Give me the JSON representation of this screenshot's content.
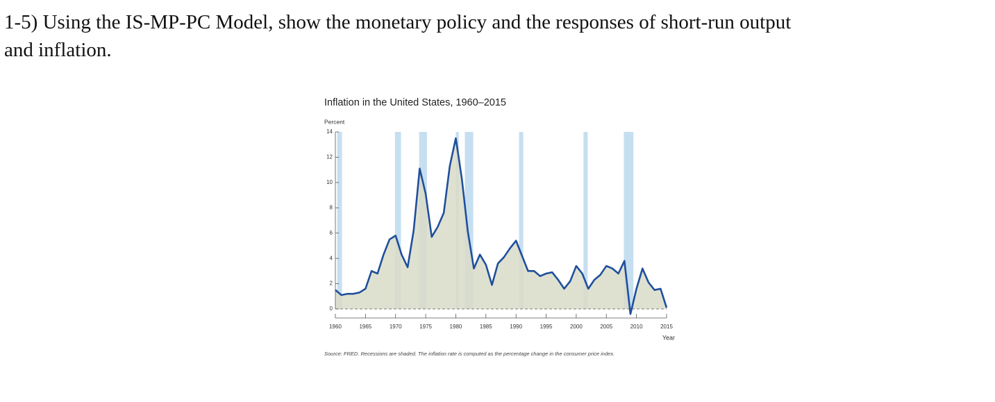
{
  "question": {
    "lines": [
      "1-5) Using the IS-MP-PC Model, show the monetary policy and the responses of short-run output",
      "and inflation."
    ]
  },
  "chart_data": {
    "type": "line",
    "title": "Inflation in the United States, 1960–2015",
    "y_label": "Percent",
    "x_label": "Year",
    "source": "Source: FRED. Recessions are shaded. The inflation rate is computed as the percentage change in the consumer price index.",
    "x": [
      1960,
      1961,
      1962,
      1963,
      1964,
      1965,
      1966,
      1967,
      1968,
      1969,
      1970,
      1971,
      1972,
      1973,
      1974,
      1975,
      1976,
      1977,
      1978,
      1979,
      1980,
      1981,
      1982,
      1983,
      1984,
      1985,
      1986,
      1987,
      1988,
      1989,
      1990,
      1991,
      1992,
      1993,
      1994,
      1995,
      1996,
      1997,
      1998,
      1999,
      2000,
      2001,
      2002,
      2003,
      2004,
      2005,
      2006,
      2007,
      2008,
      2009,
      2010,
      2011,
      2012,
      2013,
      2014,
      2015
    ],
    "series": [
      {
        "color": "#1f4f9c",
        "fill": "#d9dcc8",
        "values": [
          1.5,
          1.1,
          1.2,
          1.2,
          1.3,
          1.6,
          3.0,
          2.8,
          4.3,
          5.5,
          5.8,
          4.3,
          3.3,
          6.2,
          11.1,
          9.1,
          5.7,
          6.5,
          7.6,
          11.3,
          13.5,
          10.3,
          6.1,
          3.2,
          4.3,
          3.5,
          1.9,
          3.6,
          4.1,
          4.8,
          5.4,
          4.2,
          3.0,
          3.0,
          2.6,
          2.8,
          2.9,
          2.3,
          1.6,
          2.2,
          3.4,
          2.8,
          1.6,
          2.3,
          2.7,
          3.4,
          3.2,
          2.8,
          3.8,
          -0.4,
          1.6,
          3.2,
          2.1,
          1.5,
          1.6,
          0.1
        ]
      }
    ],
    "recessions": [
      [
        1960.3,
        1961.1
      ],
      [
        1969.9,
        1970.9
      ],
      [
        1973.9,
        1975.2
      ],
      [
        1980.0,
        1980.5
      ],
      [
        1981.5,
        1982.9
      ],
      [
        1990.5,
        1991.2
      ],
      [
        2001.2,
        2001.9
      ],
      [
        2007.9,
        2009.5
      ]
    ],
    "recession_color": "#c6dff0",
    "xlim": [
      1960,
      2015
    ],
    "xticks": [
      1960,
      1965,
      1970,
      1975,
      1980,
      1985,
      1990,
      1995,
      2000,
      2005,
      2010,
      2015
    ],
    "ylim": [
      0,
      14
    ],
    "yticks": [
      0,
      2,
      4,
      6,
      8,
      10,
      12,
      14
    ]
  }
}
